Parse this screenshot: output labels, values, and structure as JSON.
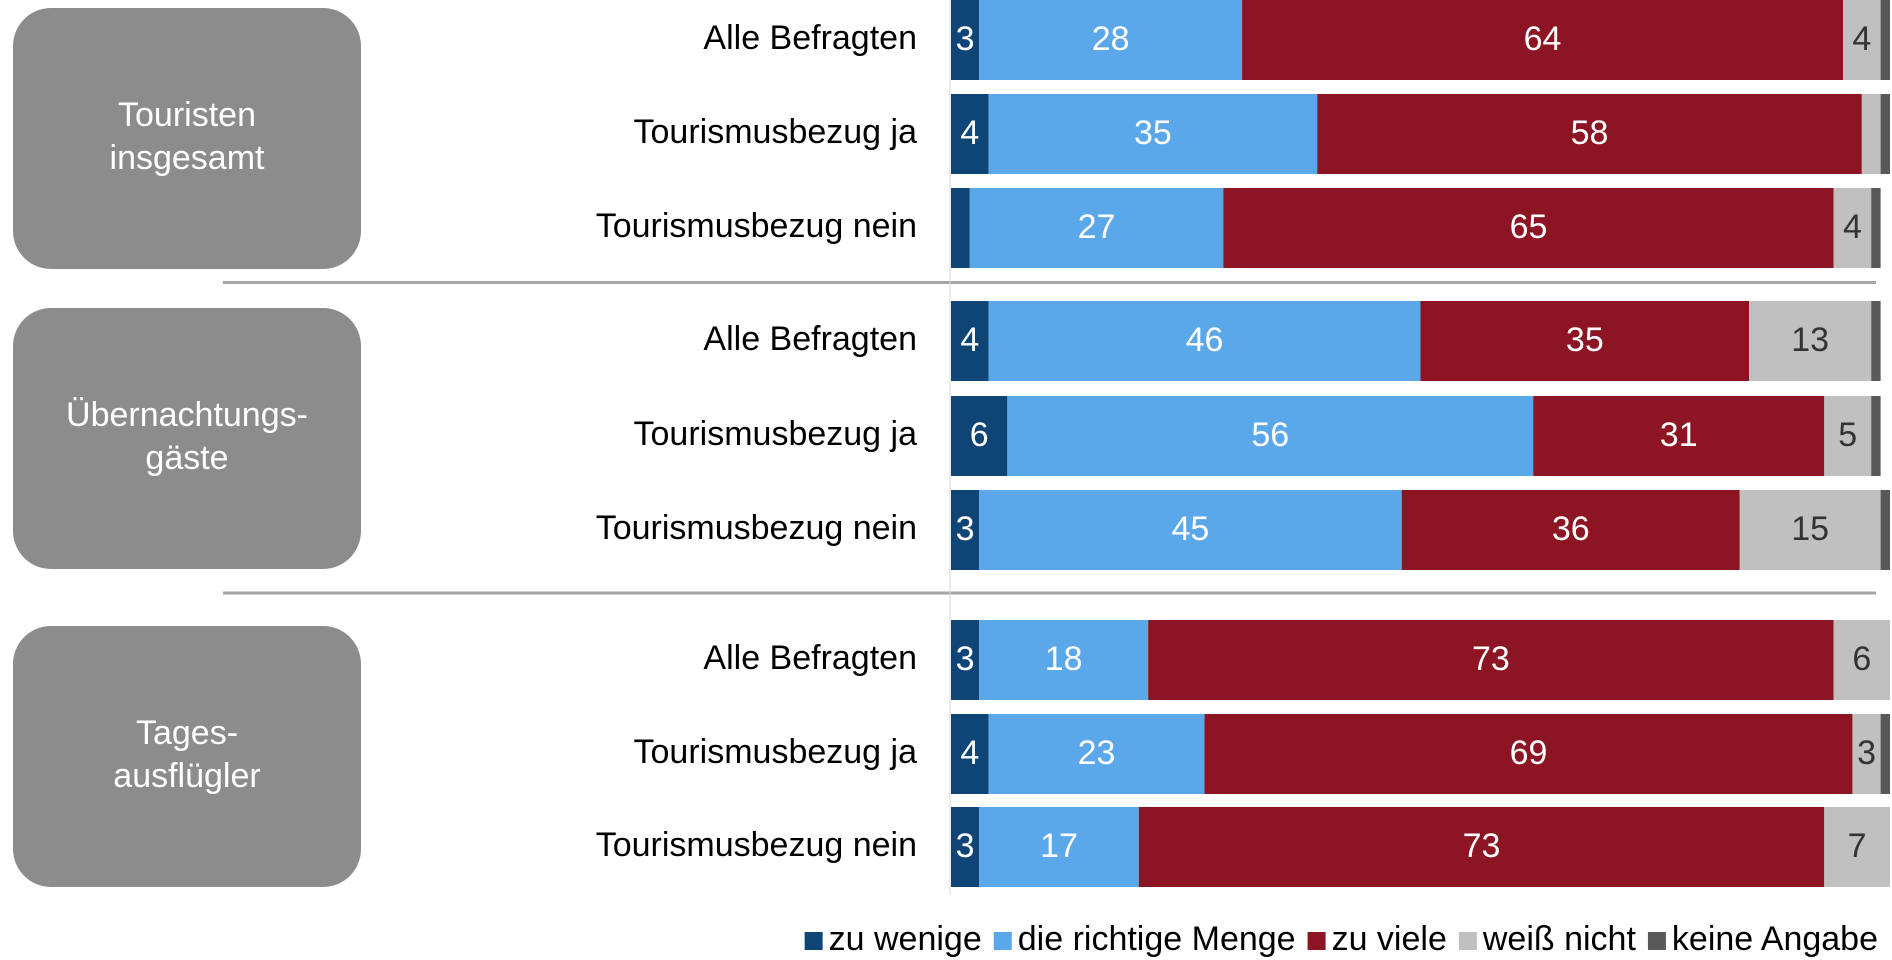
{
  "chart_data": {
    "type": "stacked-bar-horizontal",
    "groups": [
      {
        "label": [
          "Touristen",
          "insgesamt"
        ]
      },
      {
        "label": [
          "Übernachtungs-",
          "gäste"
        ]
      },
      {
        "label": [
          "Tages-",
          "ausflügler"
        ]
      }
    ],
    "categories": [
      "Alle Befragten",
      "Tourismusbezug ja",
      "Tourismusbezug nein",
      "Alle Befragten",
      "Tourismusbezug ja",
      "Tourismusbezug nein",
      "Alle Befragten",
      "Tourismusbezug ja",
      "Tourismusbezug nein"
    ],
    "series": [
      {
        "name": "zu wenige",
        "color": "#0e4576",
        "values": [
          3,
          4,
          2,
          4,
          6,
          3,
          3,
          4,
          3
        ]
      },
      {
        "name": "die richtige Menge",
        "color": "#5aa7ea",
        "values": [
          28,
          35,
          27,
          46,
          56,
          45,
          18,
          23,
          17
        ]
      },
      {
        "name": "zu viele",
        "color": "#8c1423",
        "values": [
          64,
          58,
          65,
          35,
          31,
          36,
          73,
          69,
          73
        ]
      },
      {
        "name": "weiß nicht",
        "color": "#c0c0c0",
        "values": [
          4,
          2,
          4,
          13,
          5,
          15,
          6,
          3,
          7
        ]
      },
      {
        "name": "keine Angabe",
        "color": "#595959",
        "values": [
          1,
          1,
          1,
          1,
          1,
          1,
          0,
          1,
          0
        ]
      }
    ],
    "xlim": [
      0,
      100
    ],
    "legend": "bottom-right"
  }
}
